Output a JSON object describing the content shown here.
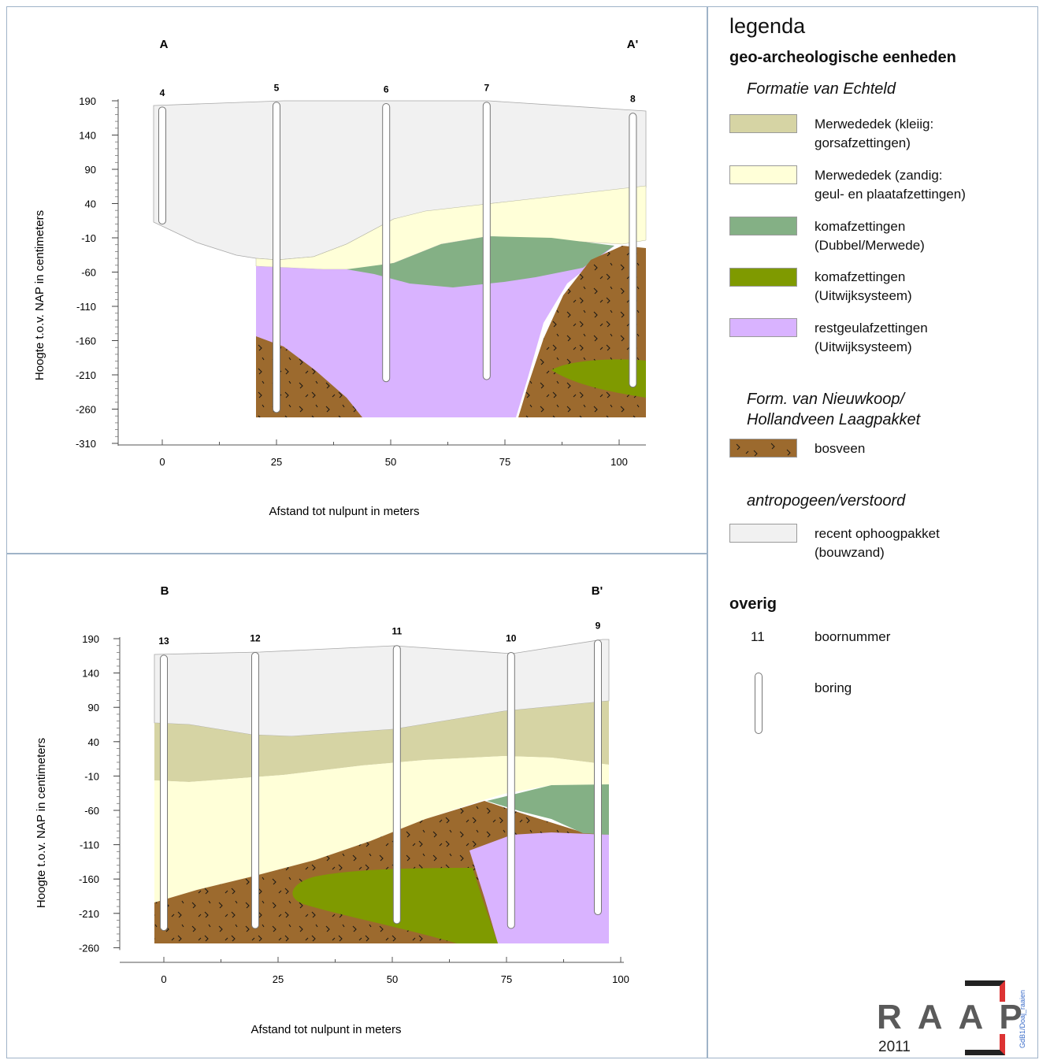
{
  "sections": [
    {
      "start_label": "A",
      "end_label": "A'",
      "ylabel": "Hoogte t.o.v. NAP in centimeters",
      "xlabel": "Afstand tot nulpunt in meters",
      "y_ticks": [
        "190",
        "140",
        "90",
        "40",
        "-10",
        "-60",
        "-110",
        "-160",
        "-210",
        "-260",
        "-310"
      ],
      "x_ticks": [
        "0",
        "25",
        "50",
        "75",
        "100"
      ],
      "boreholes": [
        {
          "number": "4",
          "x_m": 0,
          "top_cm": 181,
          "bottom_cm": 10
        },
        {
          "number": "5",
          "x_m": 25,
          "top_cm": 188,
          "bottom_cm": -265
        },
        {
          "number": "6",
          "x_m": 49,
          "top_cm": 186,
          "bottom_cm": -220
        },
        {
          "number": "7",
          "x_m": 71,
          "top_cm": 188,
          "bottom_cm": -217
        },
        {
          "number": "8",
          "x_m": 103,
          "top_cm": 172,
          "bottom_cm": -228
        }
      ]
    },
    {
      "start_label": "B",
      "end_label": "B'",
      "ylabel": "Hoogte t.o.v. NAP in centimeters",
      "xlabel": "Afstand tot nulpunt in meters",
      "y_ticks": [
        "190",
        "140",
        "90",
        "40",
        "-10",
        "-60",
        "-110",
        "-160",
        "-210",
        "-260"
      ],
      "x_ticks": [
        "0",
        "25",
        "50",
        "75",
        "100"
      ],
      "boreholes": [
        {
          "number": "13",
          "x_m": 0,
          "top_cm": 166,
          "bottom_cm": -235
        },
        {
          "number": "12",
          "x_m": 20,
          "top_cm": 170,
          "bottom_cm": -232
        },
        {
          "number": "11",
          "x_m": 51,
          "top_cm": 180,
          "bottom_cm": -225
        },
        {
          "number": "10",
          "x_m": 76,
          "top_cm": 170,
          "bottom_cm": -232
        },
        {
          "number": "9",
          "x_m": 95,
          "top_cm": 188,
          "bottom_cm": -212
        }
      ]
    }
  ],
  "legend": {
    "title": "legenda",
    "subtitle": "geo-archeologische eenheden",
    "groups": [
      {
        "name": "Formatie van Echteld",
        "items": [
          {
            "label": "Merwededek (kleiig:\ngorsafzettingen)",
            "color": "#d6d4a4"
          },
          {
            "label": "Merwededek (zandig:\ngeul- en plaatafzettingen)",
            "color": "#ffffd8"
          },
          {
            "label": "komafzettingen\n(Dubbel/Merwede)",
            "color": "#84b085"
          },
          {
            "label": "komafzettingen\n(Uitwijksysteem)",
            "color": "#7f9a00"
          },
          {
            "label": "restgeulafzettingen\n(Uitwijksysteem)",
            "color": "#d9b3ff"
          }
        ]
      },
      {
        "name": "Form. van Nieuwkoop/\nHollandveen Laagpakket",
        "items": [
          {
            "label": "bosveen",
            "color": "#9c6a2e"
          }
        ]
      },
      {
        "name": "antropogeen/verstoord",
        "items": [
          {
            "label": "recent ophoogpakket\n(bouwzand)",
            "color": "#f1f1f1"
          }
        ]
      }
    ],
    "other_heading": "overig",
    "borehole_number_sample": "11",
    "borehole_number_label": "boornummer",
    "borehole_label": "boring"
  },
  "logo": {
    "text": "RAAP",
    "year": "2011",
    "side_text": "GdB1/Doaj_raaien"
  }
}
